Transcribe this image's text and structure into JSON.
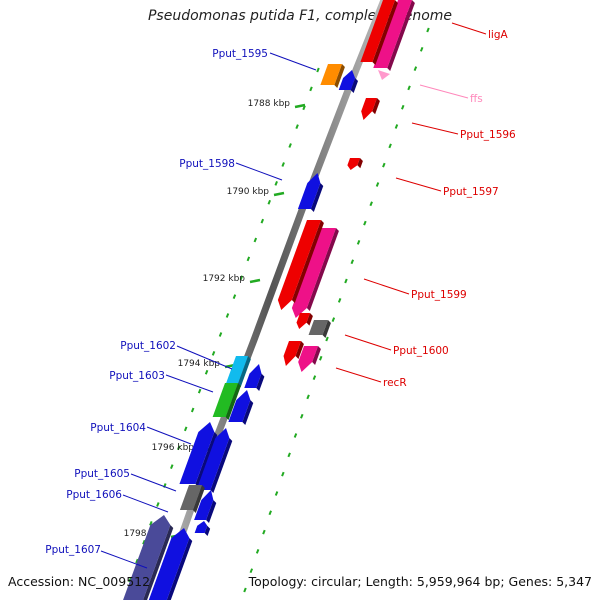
{
  "title": "Pseudomonas putida F1, complete genome",
  "accession": "Accession: NC_009512",
  "summary": "Topology: circular; Length: 5,959,964 bp; Genes: 5,347",
  "colors": {
    "blue": "#1010e0",
    "red": "#ee0000",
    "pink": "#ee1188",
    "orange": "#ff8c00",
    "gray": "#666666",
    "cyan": "#11bbee",
    "green": "#22bb22",
    "navy": "#4a4a99",
    "light_pink": "#ff99cc",
    "label_blue": "#1010bb",
    "label_red": "#dd0000",
    "label_pink": "#ff88bb",
    "tick_green": "#22aa22"
  },
  "ticks": [
    {
      "label": "1788 kbp"
    },
    {
      "label": "1790 kbp"
    },
    {
      "label": "1792 kbp"
    },
    {
      "label": "1794 kbp"
    },
    {
      "label": "1796 kbp"
    },
    {
      "label": "1798 kbp"
    }
  ],
  "genes": [
    {
      "label": "ligA",
      "strand": "+",
      "color": "pink"
    },
    {
      "label": "Pput_1595",
      "strand": "-",
      "color": "orange"
    },
    {
      "label": "ffs",
      "strand": "+",
      "color": "light_pink"
    },
    {
      "label": "Pput_1596",
      "strand": "+",
      "color": "red"
    },
    {
      "label": "Pput_1597",
      "strand": "+",
      "color": "red"
    },
    {
      "label": "Pput_1598",
      "strand": "-",
      "color": "blue"
    },
    {
      "label": "Pput_1599",
      "strand": "+",
      "color": "pink"
    },
    {
      "label": "Pput_1600",
      "strand": "+",
      "color": "gray"
    },
    {
      "label": "recR",
      "strand": "+",
      "color": "pink"
    },
    {
      "label": "Pput_1602",
      "strand": "-",
      "color": "cyan"
    },
    {
      "label": "Pput_1603",
      "strand": "-",
      "color": "green"
    },
    {
      "label": "Pput_1604",
      "strand": "-",
      "color": "blue"
    },
    {
      "label": "Pput_1605",
      "strand": "-",
      "color": "gray"
    },
    {
      "label": "Pput_1606",
      "strand": "-",
      "color": "blue"
    },
    {
      "label": "Pput_1607",
      "strand": "-",
      "color": "navy"
    }
  ]
}
